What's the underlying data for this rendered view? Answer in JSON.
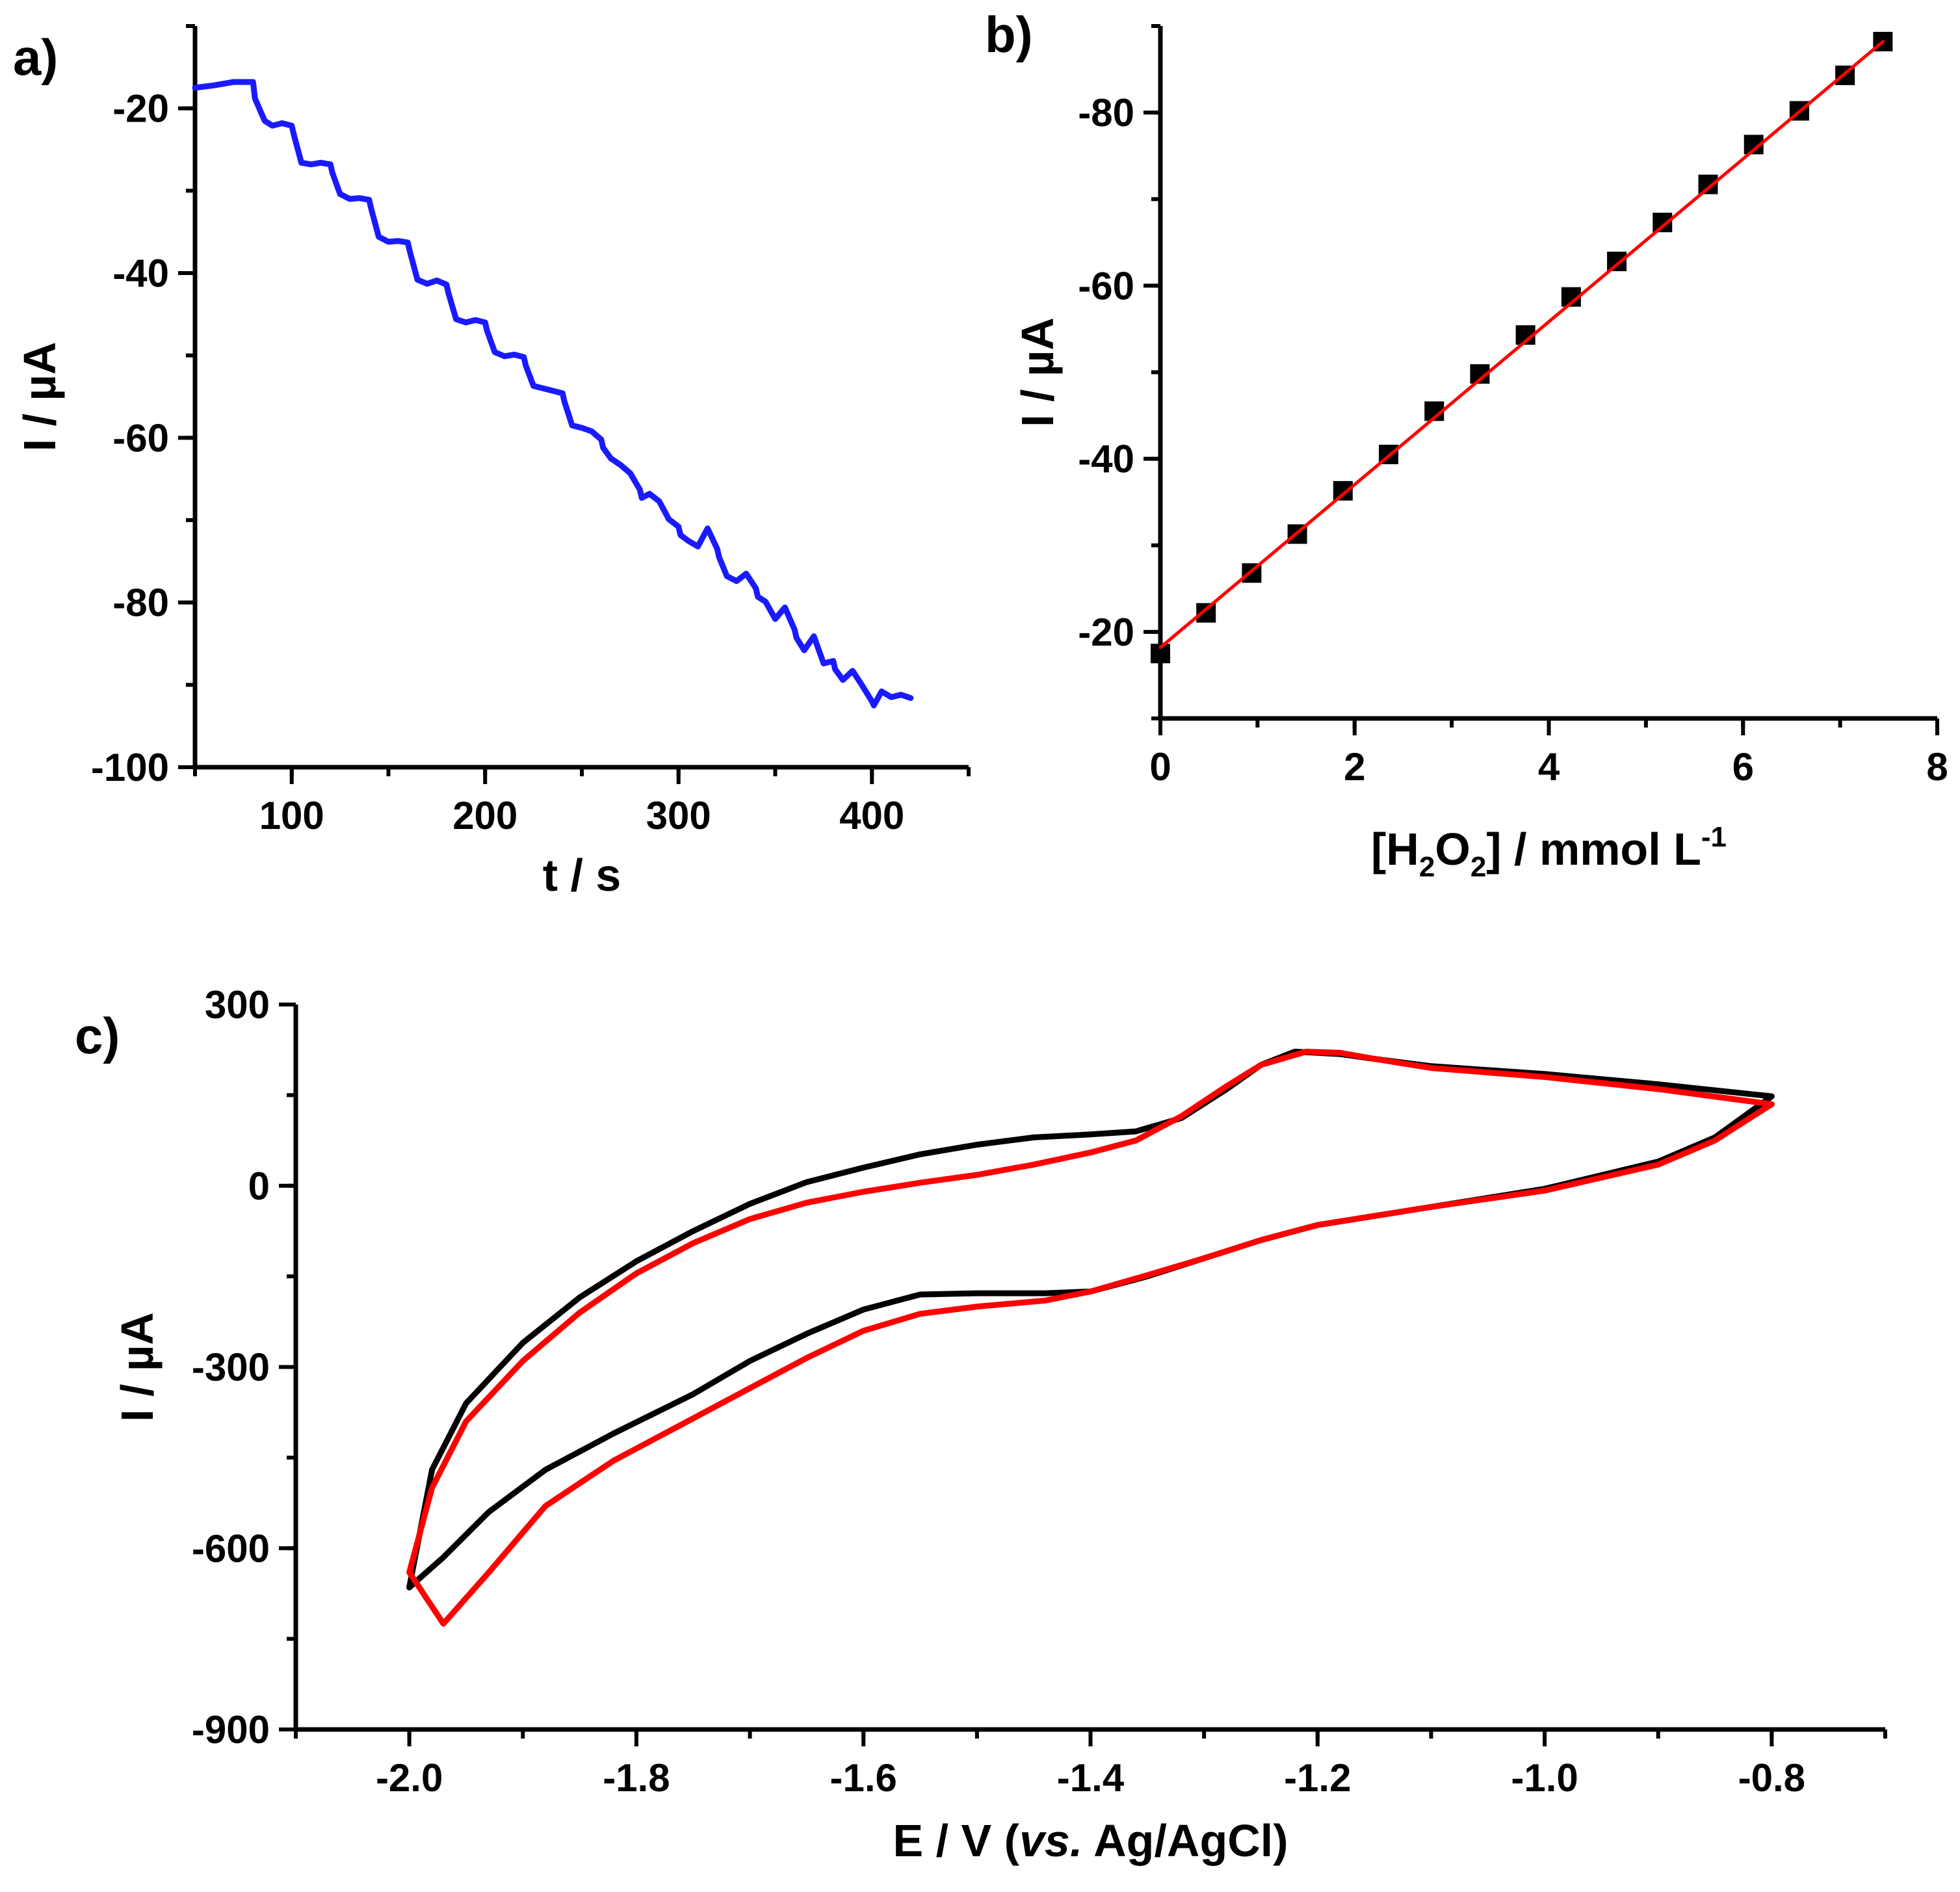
{
  "figure": {
    "panel_labels": [
      "a)",
      "b)",
      "c)"
    ]
  },
  "chart_data": [
    {
      "id": "a",
      "type": "line",
      "panel_label": "a)",
      "xlabel": "t / s",
      "ylabel": "I / µA",
      "xlim": [
        50,
        450
      ],
      "ylim": [
        -100,
        -10
      ],
      "xticks": [
        100,
        200,
        300,
        400
      ],
      "yticks": [
        -20,
        -40,
        -60,
        -80,
        -100
      ],
      "grid": false,
      "series": [
        {
          "name": "amperometric response",
          "color": "#1a1aff",
          "x": [
            50,
            60,
            70,
            80,
            81,
            86,
            90,
            95,
            100,
            101,
            105,
            110,
            115,
            120,
            121,
            125,
            130,
            135,
            140,
            141,
            145,
            150,
            155,
            160,
            161,
            165,
            170,
            175,
            180,
            181,
            185,
            190,
            195,
            200,
            201,
            205,
            210,
            215,
            220,
            221,
            225,
            230,
            235,
            240,
            241,
            245,
            250,
            255,
            260,
            261,
            265,
            270,
            275,
            280,
            281,
            285,
            290,
            295,
            300,
            301,
            305,
            310,
            315,
            320,
            321,
            325,
            330,
            335,
            340,
            341,
            345,
            350,
            355,
            360,
            361,
            365,
            370,
            375,
            380,
            381,
            385,
            390,
            395,
            400,
            401,
            405,
            410,
            415,
            420
          ],
          "y": [
            -17.5,
            -17.2,
            -16.8,
            -16.8,
            -18.8,
            -21.5,
            -22.1,
            -21.8,
            -22.1,
            -23.1,
            -26.6,
            -26.8,
            -26.6,
            -26.8,
            -27.8,
            -30.4,
            -31.0,
            -30.9,
            -31.1,
            -32.1,
            -35.6,
            -36.2,
            -36.1,
            -36.3,
            -37.3,
            -40.8,
            -41.3,
            -40.9,
            -41.4,
            -42.4,
            -45.6,
            -46.0,
            -45.7,
            -46.0,
            -47.0,
            -49.6,
            -50.1,
            -49.9,
            -50.2,
            -51.2,
            -53.7,
            -54.0,
            -54.3,
            -54.6,
            -55.6,
            -58.5,
            -58.8,
            -59.2,
            -60.2,
            -61.2,
            -62.5,
            -63.3,
            -64.3,
            -66.3,
            -67.3,
            -66.8,
            -67.7,
            -69.9,
            -70.8,
            -71.8,
            -72.5,
            -73.2,
            -71.0,
            -73.5,
            -74.5,
            -76.8,
            -77.4,
            -76.5,
            -78.3,
            -79.3,
            -79.9,
            -82.0,
            -80.6,
            -83.3,
            -84.3,
            -85.8,
            -84.1,
            -87.4,
            -87.1,
            -88.1,
            -89.4,
            -88.3,
            -90.1,
            -92.0,
            -92.5,
            -90.8,
            -91.5,
            -91.2,
            -91.6
          ]
        }
      ]
    },
    {
      "id": "b",
      "type": "scatter",
      "panel_label": "b)",
      "xlabel": "[H2O2] / mmol L-1",
      "xlabel_parts": {
        "open": "[H",
        "sub1": "2",
        "mid": "O",
        "sub2": "2",
        "unit": "] / mmol L",
        "sup": "-1"
      },
      "ylabel": "I / µA",
      "xlim": [
        0,
        8
      ],
      "ylim": [
        -10,
        -90
      ],
      "xticks": [
        0,
        2,
        4,
        6,
        8
      ],
      "yticks": [
        -20,
        -40,
        -60,
        -80
      ],
      "grid": false,
      "series": [
        {
          "name": "measured",
          "color": "#000000",
          "marker": "square",
          "x": [
            0,
            0.47,
            0.94,
            1.41,
            1.88,
            2.35,
            2.82,
            3.29,
            3.76,
            4.23,
            4.7,
            5.17,
            5.64,
            6.11,
            6.58,
            7.05,
            7.44
          ],
          "y": [
            -17.5,
            -22.2,
            -26.8,
            -31.3,
            -36.3,
            -40.5,
            -45.5,
            -49.8,
            -54.3,
            -58.7,
            -62.8,
            -67.3,
            -71.7,
            -76.3,
            -80.2,
            -84.3,
            -88.2
          ]
        },
        {
          "name": "linear fit",
          "color": "#ff0000",
          "type": "line",
          "x": [
            0,
            7.44
          ],
          "y": [
            -18.2,
            -88.2
          ]
        }
      ]
    },
    {
      "id": "c",
      "type": "line",
      "panel_label": "c)",
      "xlabel": "E / V (vs. Ag/AgCl)",
      "xlabel_parts": {
        "pre": "E / V (",
        "italic": "vs.",
        "post": " Ag/AgCl)"
      },
      "ylabel": "I / µA",
      "xlim": [
        -2.1,
        -0.7
      ],
      "ylim": [
        -900,
        300
      ],
      "xticks": [
        -2.0,
        -1.8,
        -1.6,
        -1.4,
        -1.2,
        -1.0,
        -0.8
      ],
      "xtick_labels": [
        "-2.0",
        "-1.8",
        "-1.6",
        "-1.4",
        "-1.2",
        "-1.0",
        "-0.8"
      ],
      "yticks": [
        300,
        0,
        -300,
        -600,
        -900
      ],
      "grid": false,
      "series": [
        {
          "name": "CV black",
          "color": "#000000",
          "x": [
            -0.8,
            -0.9,
            -1.0,
            -1.1,
            -1.15,
            -1.18,
            -1.22,
            -1.25,
            -1.28,
            -1.32,
            -1.36,
            -1.4,
            -1.45,
            -1.5,
            -1.55,
            -1.6,
            -1.65,
            -1.7,
            -1.75,
            -1.8,
            -1.85,
            -1.9,
            -1.95,
            -1.98,
            -2.0,
            -1.97,
            -1.93,
            -1.88,
            -1.82,
            -1.75,
            -1.7,
            -1.65,
            -1.6,
            -1.55,
            -1.5,
            -1.44,
            -1.4,
            -1.35,
            -1.3,
            -1.25,
            -1.2,
            -1.1,
            -1.0,
            -0.9,
            -0.85,
            -0.8
          ],
          "y": [
            148,
            168,
            185,
            198,
            210,
            218,
            222,
            200,
            160,
            112,
            90,
            85,
            80,
            68,
            52,
            30,
            6,
            -30,
            -75,
            -125,
            -185,
            -260,
            -360,
            -470,
            -665,
            -615,
            -540,
            -470,
            -410,
            -345,
            -290,
            -245,
            -205,
            -180,
            -178,
            -178,
            -175,
            -150,
            -120,
            -90,
            -65,
            -35,
            -5,
            40,
            80,
            148
          ]
        },
        {
          "name": "CV red",
          "color": "#ff0000",
          "x": [
            -0.8,
            -0.9,
            -1.0,
            -1.1,
            -1.15,
            -1.18,
            -1.21,
            -1.25,
            -1.28,
            -1.32,
            -1.36,
            -1.4,
            -1.45,
            -1.5,
            -1.55,
            -1.6,
            -1.65,
            -1.7,
            -1.75,
            -1.8,
            -1.85,
            -1.9,
            -1.95,
            -1.98,
            -2.0,
            -1.97,
            -1.93,
            -1.88,
            -1.82,
            -1.75,
            -1.7,
            -1.65,
            -1.6,
            -1.55,
            -1.5,
            -1.44,
            -1.4,
            -1.35,
            -1.3,
            -1.25,
            -1.2,
            -1.1,
            -1.0,
            -0.9,
            -0.85,
            -0.8
          ],
          "y": [
            135,
            160,
            180,
            195,
            210,
            220,
            222,
            200,
            165,
            115,
            75,
            55,
            35,
            18,
            5,
            -10,
            -28,
            -55,
            -95,
            -145,
            -210,
            -290,
            -390,
            -500,
            -640,
            -725,
            -640,
            -530,
            -455,
            -385,
            -335,
            -285,
            -240,
            -212,
            -200,
            -190,
            -175,
            -148,
            -120,
            -90,
            -65,
            -35,
            -8,
            35,
            75,
            135
          ]
        }
      ]
    }
  ]
}
